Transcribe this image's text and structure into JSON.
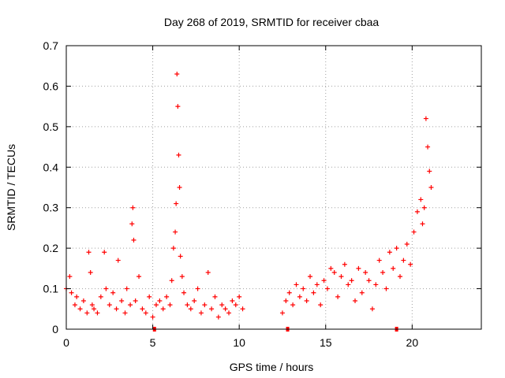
{
  "chart_data": {
    "type": "scatter",
    "title": "Day 268 of 2019, SRMTID for receiver cbaa",
    "xlabel": "GPS time / hours",
    "ylabel": "SRMTID / TECUs",
    "xlim": [
      0,
      24
    ],
    "ylim": [
      0,
      0.7
    ],
    "xticks": [
      0,
      5,
      10,
      15,
      20
    ],
    "yticks": [
      0,
      0.1,
      0.2,
      0.3,
      0.4,
      0.5,
      0.6,
      0.7
    ],
    "ytick_labels": [
      "0",
      "0.1",
      "0.2",
      "0.3",
      "0.4",
      "0.5",
      "0.6",
      "0.7"
    ],
    "grid": true,
    "marker": "+",
    "color": "#ff0000",
    "baseline_marks_x": [
      5.1,
      12.8,
      19.1
    ],
    "series": [
      {
        "name": "SRMTID",
        "x": [
          0.0,
          0.2,
          0.3,
          0.5,
          0.6,
          0.8,
          1.0,
          1.2,
          1.3,
          1.4,
          1.5,
          1.6,
          1.8,
          2.0,
          2.2,
          2.3,
          2.5,
          2.7,
          2.9,
          3.0,
          3.2,
          3.4,
          3.5,
          3.7,
          3.8,
          3.85,
          3.9,
          4.0,
          4.2,
          4.4,
          4.6,
          4.8,
          5.0,
          5.2,
          5.4,
          5.6,
          5.8,
          6.0,
          6.1,
          6.2,
          6.3,
          6.35,
          6.4,
          6.45,
          6.5,
          6.55,
          6.6,
          6.7,
          6.8,
          7.0,
          7.2,
          7.4,
          7.6,
          7.8,
          8.0,
          8.2,
          8.4,
          8.6,
          8.8,
          9.0,
          9.2,
          9.4,
          9.6,
          9.8,
          10.0,
          10.2,
          12.5,
          12.7,
          12.9,
          13.1,
          13.3,
          13.5,
          13.7,
          13.9,
          14.1,
          14.3,
          14.5,
          14.7,
          14.9,
          15.1,
          15.3,
          15.5,
          15.7,
          15.9,
          16.1,
          16.3,
          16.5,
          16.7,
          16.9,
          17.1,
          17.3,
          17.5,
          17.7,
          17.9,
          18.1,
          18.3,
          18.5,
          18.7,
          18.9,
          19.1,
          19.3,
          19.5,
          19.7,
          19.9,
          20.1,
          20.3,
          20.5,
          20.6,
          20.7,
          20.8,
          20.9,
          21.0,
          21.1
        ],
        "y": [
          0.1,
          0.13,
          0.09,
          0.06,
          0.08,
          0.05,
          0.07,
          0.04,
          0.19,
          0.14,
          0.06,
          0.05,
          0.04,
          0.08,
          0.19,
          0.1,
          0.06,
          0.09,
          0.05,
          0.17,
          0.07,
          0.04,
          0.1,
          0.06,
          0.26,
          0.3,
          0.22,
          0.07,
          0.13,
          0.05,
          0.04,
          0.08,
          0.03,
          0.06,
          0.07,
          0.05,
          0.08,
          0.06,
          0.12,
          0.2,
          0.24,
          0.31,
          0.63,
          0.55,
          0.43,
          0.35,
          0.18,
          0.13,
          0.09,
          0.06,
          0.05,
          0.07,
          0.1,
          0.04,
          0.06,
          0.14,
          0.05,
          0.08,
          0.03,
          0.06,
          0.05,
          0.04,
          0.07,
          0.06,
          0.08,
          0.05,
          0.04,
          0.07,
          0.09,
          0.06,
          0.11,
          0.08,
          0.1,
          0.07,
          0.13,
          0.09,
          0.11,
          0.06,
          0.12,
          0.1,
          0.15,
          0.14,
          0.08,
          0.13,
          0.16,
          0.11,
          0.12,
          0.07,
          0.15,
          0.09,
          0.14,
          0.12,
          0.05,
          0.11,
          0.17,
          0.14,
          0.1,
          0.19,
          0.15,
          0.2,
          0.13,
          0.17,
          0.21,
          0.16,
          0.24,
          0.29,
          0.32,
          0.26,
          0.3,
          0.52,
          0.45,
          0.39,
          0.35
        ]
      }
    ]
  }
}
